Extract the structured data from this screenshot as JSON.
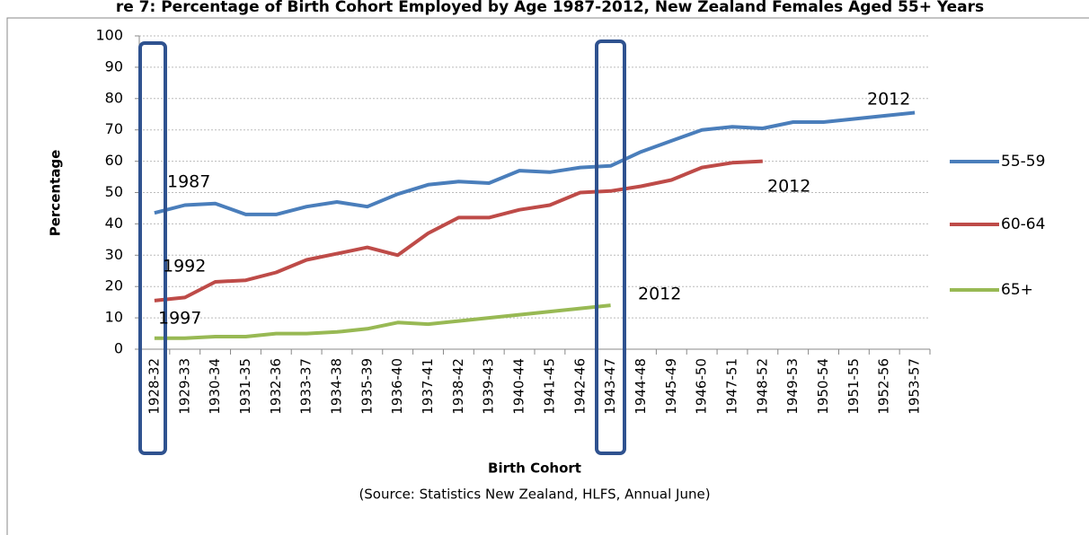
{
  "chart_data": {
    "type": "line",
    "title": "re 7: Percentage of Birth Cohort Employed by Age 1987-2012, New Zealand Females Aged 55+ Years",
    "x_label": "Birth Cohort",
    "y_label": "Percentage",
    "source": "(Source: Statistics New Zealand, HLFS, Annual June)",
    "categories": [
      "1928-32",
      "1929-33",
      "1930-34",
      "1931-35",
      "1932-36",
      "1933-37",
      "1934-38",
      "1935-39",
      "1936-40",
      "1937-41",
      "1938-42",
      "1939-43",
      "1940-44",
      "1941-45",
      "1942-46",
      "1943-47",
      "1944-48",
      "1945-49",
      "1946-50",
      "1947-51",
      "1948-52",
      "1949-53",
      "1950-54",
      "1951-55",
      "1952-56",
      "1953-57"
    ],
    "series": [
      {
        "name": "55-59",
        "color": "#4a7ebb",
        "values": [
          43.5,
          46,
          46.5,
          43,
          43,
          45.5,
          47,
          45.5,
          49.5,
          52.5,
          53.5,
          53,
          57,
          56.5,
          58,
          58.5,
          63,
          66.5,
          70,
          71,
          70.5,
          72.5,
          72.5,
          73.5,
          74.5,
          75.5
        ]
      },
      {
        "name": "60-64",
        "color": "#be4b48",
        "values": [
          15.5,
          16.5,
          21.5,
          22,
          24.5,
          28.5,
          30.5,
          32.5,
          30,
          37,
          42,
          42,
          44.5,
          46,
          50,
          50.5,
          52,
          54,
          58,
          59.5,
          60,
          null,
          null,
          null,
          null,
          null
        ]
      },
      {
        "name": "65+",
        "color": "#98b954",
        "values": [
          3.5,
          3.5,
          4,
          4,
          5,
          5,
          5.5,
          6.5,
          8.5,
          8,
          9,
          10,
          11,
          12,
          13,
          14,
          null,
          null,
          null,
          null,
          null,
          null,
          null,
          null,
          null,
          null
        ]
      }
    ],
    "annotations": [
      "1987",
      "1992",
      "1997",
      "2012",
      "2012",
      "2012"
    ],
    "ylim": [
      0,
      100
    ],
    "yticks": [
      0,
      10,
      20,
      30,
      40,
      50,
      60,
      70,
      80,
      90,
      100
    ],
    "grid": true,
    "legend": "right"
  }
}
